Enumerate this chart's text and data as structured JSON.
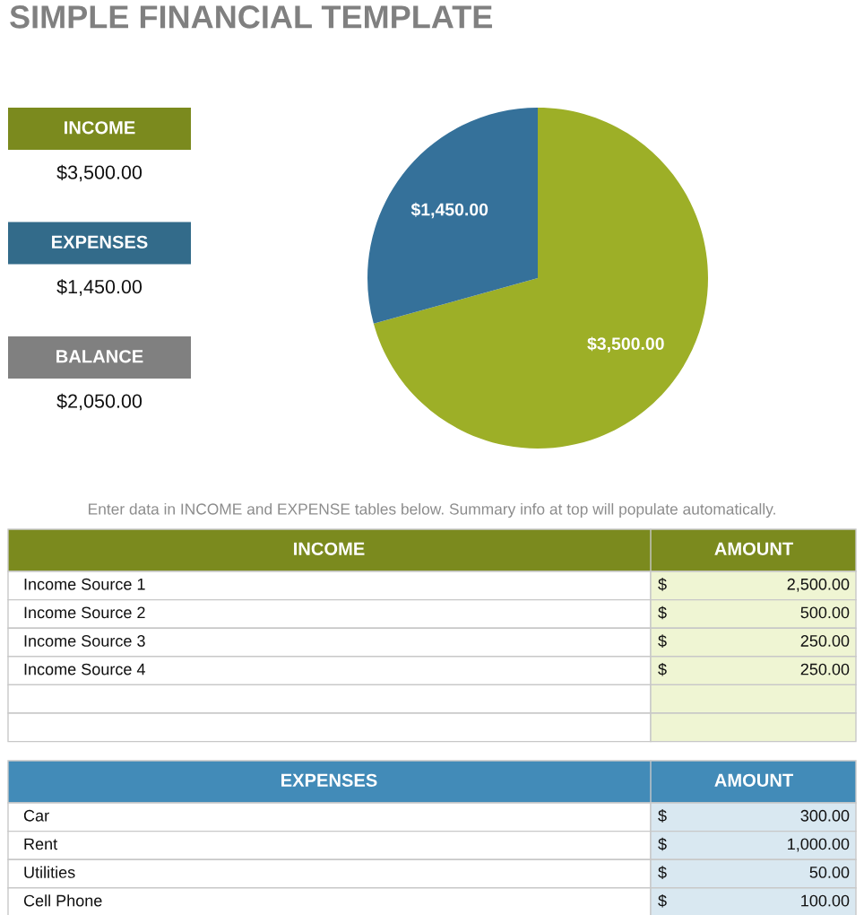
{
  "chart_data": [
    {
      "type": "other",
      "title": "SIMPLE FINANCIAL TEMPLATE",
      "categories": [
        "INCOME",
        "EXPENSES",
        "BALANCE"
      ],
      "value_labels": [
        "$3,500.00",
        "$1,450.00",
        "$2,050.00"
      ],
      "colors": [
        "#7b8a1e",
        "#336b8a",
        "#808080"
      ]
    },
    {
      "type": "pie",
      "categories": [
        null,
        null
      ],
      "values": [
        3500,
        1450
      ],
      "value_labels": [
        "$3,500.00",
        "$1,450.00"
      ],
      "colors": [
        "#9daf27",
        "#35719a"
      ]
    },
    {
      "type": "other",
      "annotations": [
        "Enter data in INCOME and EXPENSE tables below. Summary info at top will populate automatically."
      ]
    },
    {
      "type": "other",
      "title": "INCOME",
      "ylabel": "AMOUNT",
      "categories": [
        "Income Source 1",
        "Income Source 2",
        "Income Source 3",
        "Income Source 4",
        null,
        null
      ],
      "values": [
        2500,
        500,
        250,
        250,
        null,
        null
      ],
      "value_labels": [
        "2,500.00",
        "500.00",
        "250.00",
        "250.00",
        null,
        null
      ],
      "annotations": [
        "$",
        "$",
        "$",
        "$"
      ],
      "color": "#eff5d3"
    },
    {
      "type": "other",
      "title": "EXPENSES",
      "ylabel": "AMOUNT",
      "categories": [
        "Car",
        "Rent",
        "Utilities",
        "Cell Phone"
      ],
      "values": [
        300,
        1000,
        50,
        100
      ],
      "value_labels": [
        "300.00",
        "1,000.00",
        "50.00",
        "100.00"
      ],
      "annotations": [
        "$",
        "$",
        "$",
        "$"
      ],
      "color": "#d9e8f1"
    }
  ]
}
